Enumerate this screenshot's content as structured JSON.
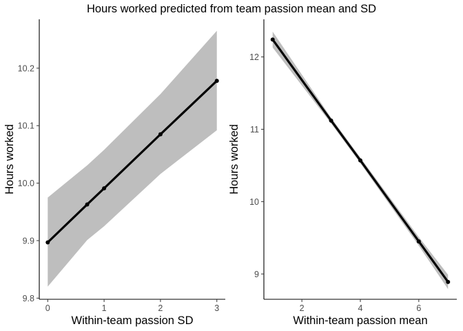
{
  "title": "Hours worked predicted from team passion mean and SD",
  "chart_data": [
    {
      "type": "line",
      "xlabel": "Within-team passion SD",
      "ylabel": "Hours worked",
      "xlim": [
        -0.15,
        3.15
      ],
      "ylim": [
        9.798,
        10.285
      ],
      "xticks": [
        0,
        1,
        2,
        3
      ],
      "xtick_labels": [
        "0",
        "1",
        "2",
        "3"
      ],
      "yticks": [
        9.8,
        9.9,
        10.0,
        10.1,
        10.2
      ],
      "ytick_labels": [
        "9.8",
        "9.9",
        "10.0",
        "10.1",
        "10.2"
      ],
      "x": [
        0,
        0.7,
        1,
        2,
        3
      ],
      "y": [
        9.897,
        9.963,
        9.991,
        10.085,
        10.178
      ],
      "ribbon_lower": [
        9.82,
        9.901,
        9.925,
        10.016,
        10.092
      ],
      "ribbon_upper": [
        9.975,
        10.031,
        10.058,
        10.155,
        10.265
      ],
      "grid": false,
      "line_color": "#000000",
      "ribbon_color": "#bebebe"
    },
    {
      "type": "line",
      "xlabel": "Within-team passion mean",
      "ylabel": "Hours worked",
      "xlim": [
        0.7,
        7.3
      ],
      "ylim": [
        8.65,
        12.52
      ],
      "xticks": [
        2,
        4,
        6
      ],
      "xtick_labels": [
        "2",
        "4",
        "6"
      ],
      "yticks": [
        9,
        10,
        11,
        12
      ],
      "ytick_labels": [
        "9",
        "10",
        "11",
        "12"
      ],
      "x": [
        1,
        3,
        4,
        6,
        7
      ],
      "y": [
        12.24,
        11.12,
        10.57,
        9.45,
        8.89
      ],
      "ribbon_lower": [
        12.13,
        11.08,
        10.53,
        9.39,
        8.79
      ],
      "ribbon_upper": [
        12.35,
        11.16,
        10.61,
        9.51,
        8.99
      ],
      "grid": false,
      "line_color": "#000000",
      "ribbon_color": "#bebebe"
    }
  ]
}
